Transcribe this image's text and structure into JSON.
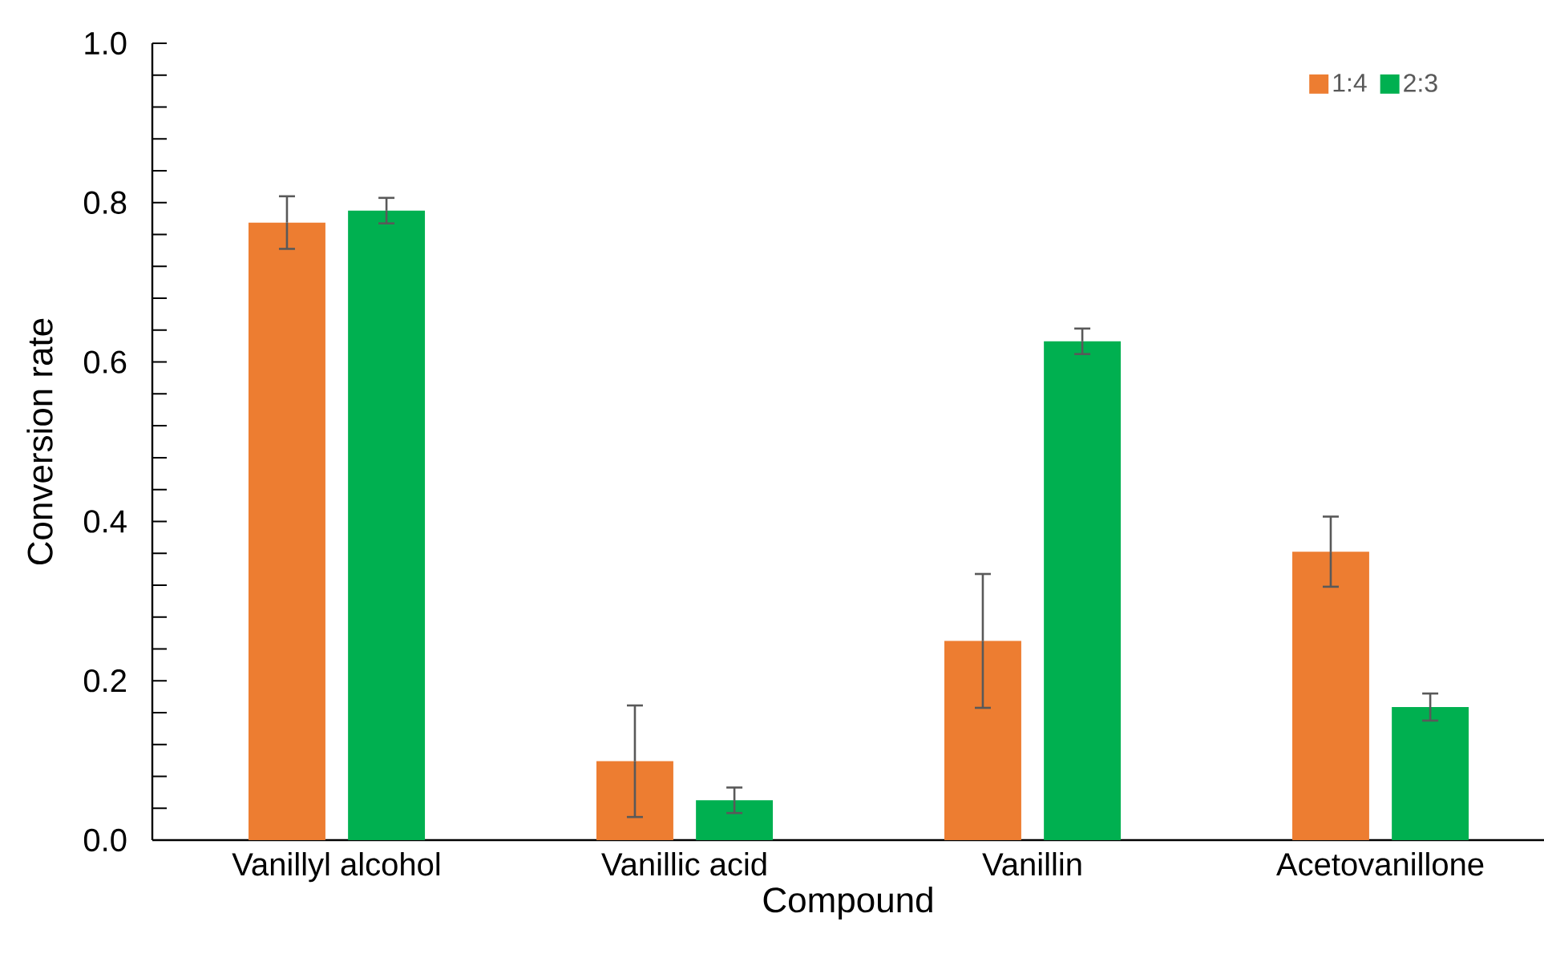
{
  "chart_data": {
    "type": "bar",
    "xlabel": "Compound",
    "ylabel": "Conversion rate",
    "categories": [
      "Vanillyl alcohol",
      "Vanillic acid",
      "Vanillin",
      "Acetovanillone"
    ],
    "series": [
      {
        "name": "1:4",
        "color": "#ed7d31",
        "values": [
          0.775,
          0.099,
          0.25,
          0.362
        ],
        "errors": [
          0.033,
          0.07,
          0.084,
          0.044
        ]
      },
      {
        "name": "2:3",
        "color": "#00b050",
        "values": [
          0.79,
          0.05,
          0.626,
          0.167
        ],
        "errors": [
          0.016,
          0.016,
          0.016,
          0.017
        ]
      }
    ],
    "ylim": [
      0,
      1.0
    ],
    "yticks": [
      {
        "value": 0,
        "label": "0.0"
      },
      {
        "value": 0.2,
        "label": "0.2"
      },
      {
        "value": 0.4,
        "label": "0.4"
      },
      {
        "value": 0.6,
        "label": "0.6"
      },
      {
        "value": 0.8,
        "label": "0.8"
      },
      {
        "value": 1.0,
        "label": "1.0"
      }
    ],
    "grid": false,
    "legend": "top right"
  }
}
